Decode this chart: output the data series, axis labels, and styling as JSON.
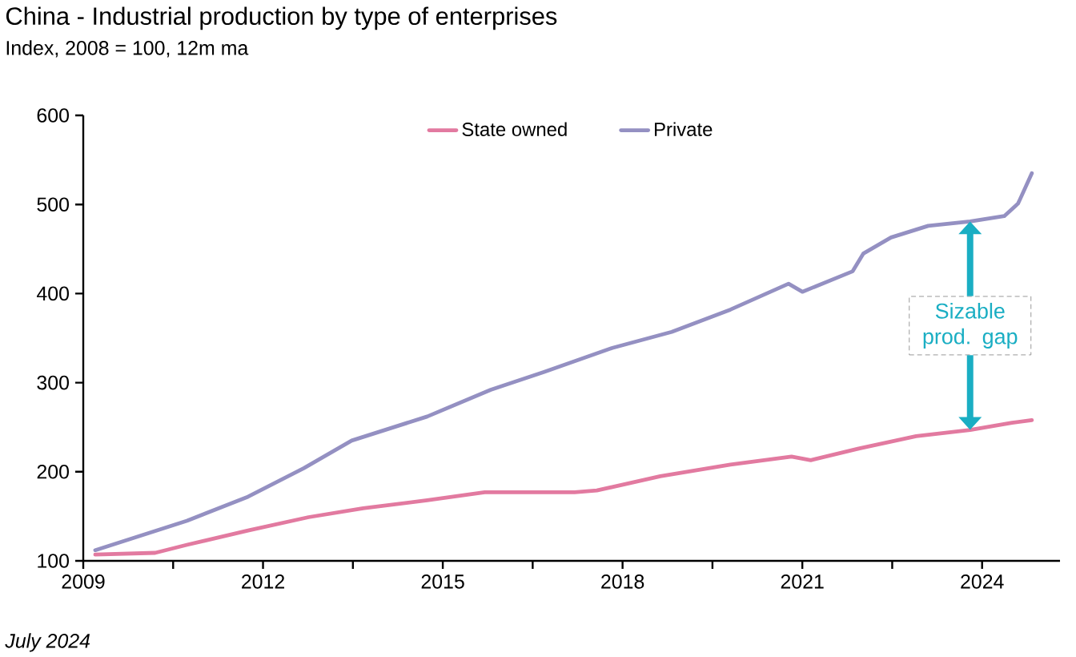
{
  "chart_data": {
    "type": "line",
    "title": "China - Industrial production by type of enterprises",
    "subtitle": "Index, 2008 = 100, 12m ma",
    "annotations": [
      {
        "text": "Sizable prod. gap",
        "x": 2023.8,
        "y": 481
      },
      "July 2024"
    ],
    "xlim": [
      2009,
      2025.3
    ],
    "ylim": [
      100,
      600
    ],
    "xticks": [
      2009,
      {
        "value": 2010.5,
        "label": null
      },
      2012,
      {
        "value": 2013.5,
        "label": null
      },
      2015,
      {
        "value": 2016.5,
        "label": null
      },
      2018,
      {
        "value": 2019.5,
        "label": null
      },
      2021,
      {
        "value": 2022.5,
        "label": null
      },
      2024
    ],
    "yticks": [
      100,
      200,
      300,
      400,
      500,
      600
    ],
    "grid": false,
    "legend": "top",
    "marker": "none",
    "line_style": "solid",
    "series": [
      {
        "name": "State owned",
        "color": "#e27aa0",
        "x": [
          2009.2,
          2010.2,
          2010.73,
          2011.75,
          2012.76,
          2013.67,
          2014.74,
          2015.7,
          2017.2,
          2017.57,
          2018.63,
          2019.8,
          2020.82,
          2021.14,
          2021.94,
          2022.9,
          2023.8,
          2024.5,
          2024.83
        ],
        "values": [
          107,
          109,
          118,
          134,
          149,
          159,
          168,
          177,
          177,
          179,
          195,
          208,
          217,
          213,
          226,
          240,
          247,
          255,
          258
        ]
      },
      {
        "name": "Private",
        "color": "#9490c2",
        "x": [
          2009.2,
          2010.73,
          2011.75,
          2012.68,
          2013.48,
          2014.74,
          2015.8,
          2016.69,
          2017.83,
          2018.82,
          2019.8,
          2020.77,
          2021.0,
          2021.84,
          2022.02,
          2022.48,
          2023.1,
          2023.8,
          2024.37,
          2024.6,
          2024.83
        ],
        "values": [
          112,
          145,
          172,
          204,
          235,
          262,
          292,
          312,
          339,
          357,
          382,
          411,
          402,
          425,
          445,
          463,
          476,
          481,
          487,
          501,
          535
        ]
      }
    ]
  }
}
